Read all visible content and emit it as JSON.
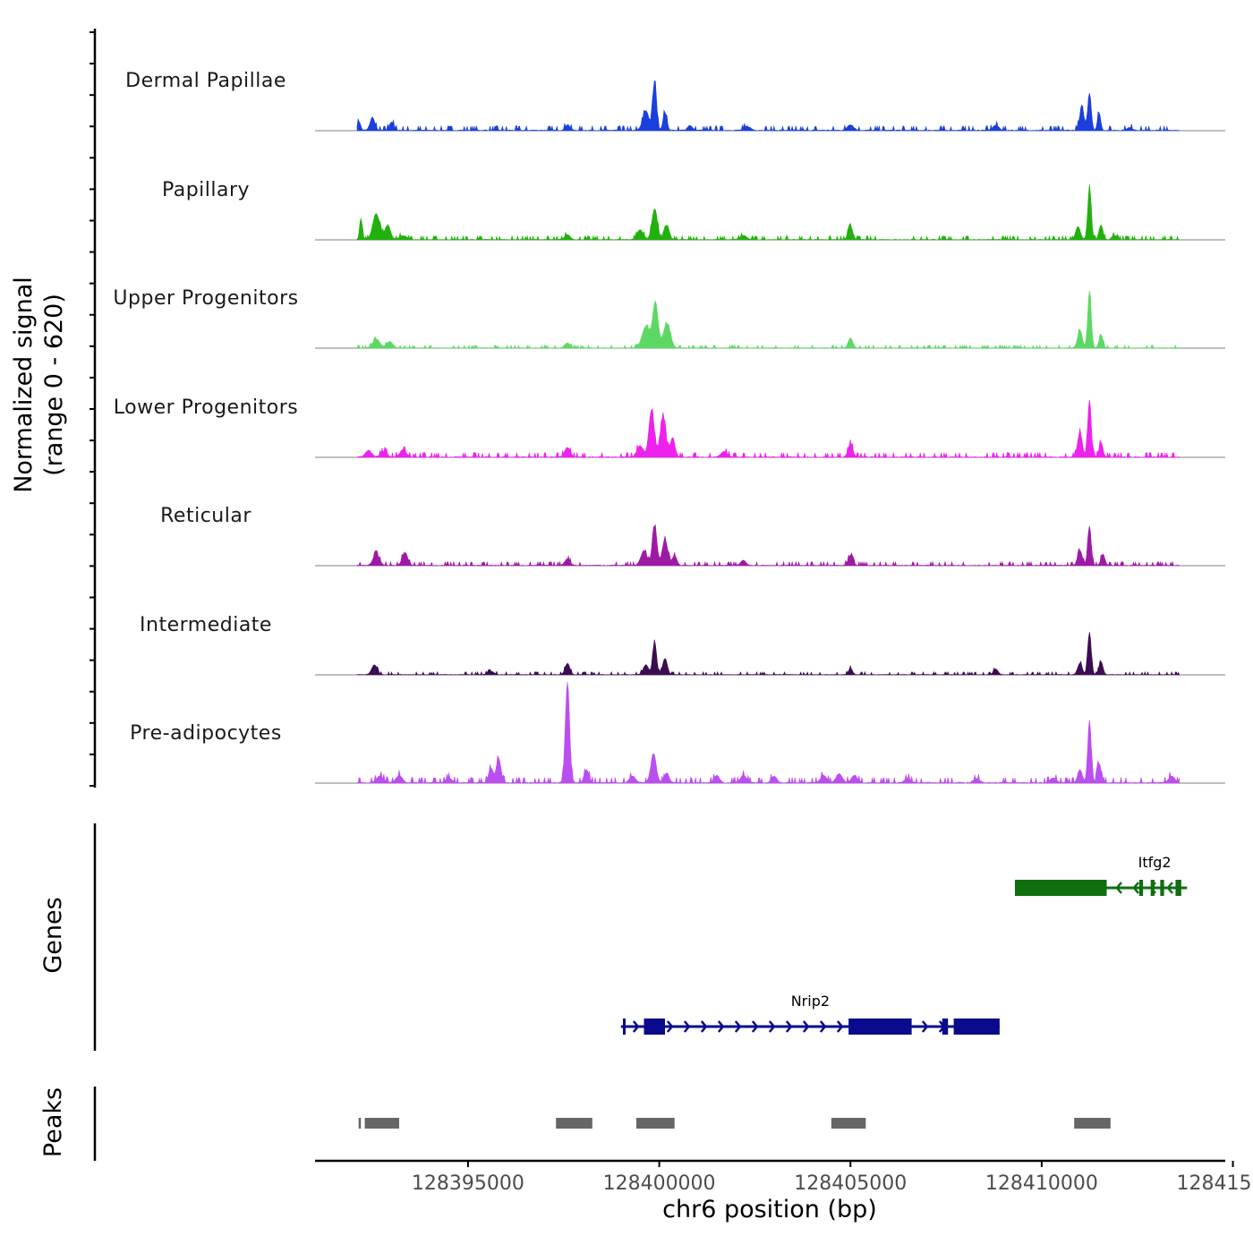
{
  "chart_data": {
    "type": "area",
    "chromosome": "chr6",
    "xlabel": "chr6 position (bp)",
    "ylabel_line1": "Normalized signal",
    "ylabel_line2": "(range 0 - 620)",
    "xlim": [
      128391000,
      128414800
    ],
    "ylim": [
      0,
      620
    ],
    "x_ticks": [
      128395000,
      128400000,
      128405000,
      128410000,
      128415000
    ],
    "x_tick_labels": [
      "128395000",
      "128400000",
      "128405000",
      "128410000",
      "128415000"
    ],
    "series": [
      {
        "name": "Dermal Papillae",
        "color": "#1a3fdc",
        "peaks": [
          [
            128392150,
            55,
            40
          ],
          [
            128392500,
            80,
            60
          ],
          [
            128393000,
            50,
            60
          ],
          [
            128397600,
            35,
            60
          ],
          [
            128399650,
            120,
            80
          ],
          [
            128399880,
            300,
            50
          ],
          [
            128400150,
            110,
            50
          ],
          [
            128400800,
            30,
            60
          ],
          [
            128402300,
            25,
            80
          ],
          [
            128405000,
            35,
            80
          ],
          [
            128408800,
            30,
            80
          ],
          [
            128411050,
            130,
            60
          ],
          [
            128411250,
            230,
            45
          ],
          [
            128411500,
            110,
            40
          ],
          [
            128412300,
            15,
            80
          ]
        ],
        "noise": 0.05
      },
      {
        "name": "Papillary",
        "color": "#22b00e",
        "peaks": [
          [
            128392200,
            130,
            35
          ],
          [
            128392600,
            160,
            90
          ],
          [
            128392900,
            90,
            70
          ],
          [
            128393300,
            25,
            90
          ],
          [
            128397600,
            30,
            70
          ],
          [
            128399500,
            60,
            80
          ],
          [
            128399880,
            190,
            70
          ],
          [
            128400200,
            90,
            60
          ],
          [
            128402200,
            25,
            80
          ],
          [
            128405000,
            80,
            60
          ],
          [
            128410950,
            80,
            60
          ],
          [
            128411250,
            320,
            45
          ],
          [
            128411550,
            90,
            50
          ],
          [
            128411900,
            25,
            60
          ]
        ],
        "noise": 0.04
      },
      {
        "name": "Upper Progenitors",
        "color": "#5ed865",
        "peaks": [
          [
            128392600,
            55,
            90
          ],
          [
            128392950,
            40,
            80
          ],
          [
            128397600,
            30,
            70
          ],
          [
            128399650,
            130,
            100
          ],
          [
            128399900,
            280,
            70
          ],
          [
            128400200,
            150,
            90
          ],
          [
            128405000,
            60,
            60
          ],
          [
            128411000,
            110,
            60
          ],
          [
            128411250,
            350,
            45
          ],
          [
            128411550,
            80,
            50
          ]
        ],
        "noise": 0.03
      },
      {
        "name": "Lower Progenitors",
        "color": "#ee22ee",
        "peaks": [
          [
            128392400,
            40,
            80
          ],
          [
            128392800,
            35,
            80
          ],
          [
            128393300,
            45,
            80
          ],
          [
            128397600,
            60,
            70
          ],
          [
            128399500,
            70,
            80
          ],
          [
            128399800,
            290,
            70
          ],
          [
            128400100,
            250,
            70
          ],
          [
            128400350,
            120,
            60
          ],
          [
            128401700,
            35,
            80
          ],
          [
            128405000,
            80,
            60
          ],
          [
            128411000,
            150,
            60
          ],
          [
            128411250,
            350,
            45
          ],
          [
            128411550,
            90,
            50
          ]
        ],
        "noise": 0.05
      },
      {
        "name": "Reticular",
        "color": "#9e1aa6",
        "peaks": [
          [
            128392600,
            70,
            80
          ],
          [
            128393350,
            80,
            70
          ],
          [
            128397600,
            40,
            70
          ],
          [
            128399600,
            90,
            80
          ],
          [
            128399880,
            240,
            60
          ],
          [
            128400150,
            160,
            70
          ],
          [
            128400400,
            60,
            60
          ],
          [
            128402200,
            30,
            70
          ],
          [
            128405000,
            60,
            60
          ],
          [
            128411000,
            90,
            60
          ],
          [
            128411250,
            240,
            45
          ],
          [
            128411600,
            70,
            50
          ]
        ],
        "noise": 0.04
      },
      {
        "name": "Intermediate",
        "color": "#3c0c52",
        "peaks": [
          [
            128392550,
            60,
            70
          ],
          [
            128395600,
            20,
            80
          ],
          [
            128397600,
            70,
            60
          ],
          [
            128399650,
            60,
            70
          ],
          [
            128399880,
            200,
            50
          ],
          [
            128400150,
            100,
            60
          ],
          [
            128405000,
            40,
            50
          ],
          [
            128408800,
            35,
            60
          ],
          [
            128411000,
            70,
            60
          ],
          [
            128411250,
            260,
            45
          ],
          [
            128411550,
            80,
            50
          ]
        ],
        "noise": 0.03
      },
      {
        "name": "Pre-adipocytes",
        "color": "#bb4ef0",
        "peaks": [
          [
            128392700,
            40,
            90
          ],
          [
            128393200,
            45,
            80
          ],
          [
            128394500,
            30,
            80
          ],
          [
            128395600,
            90,
            60
          ],
          [
            128395800,
            150,
            60
          ],
          [
            128397600,
            620,
            55
          ],
          [
            128398100,
            80,
            60
          ],
          [
            128399300,
            40,
            80
          ],
          [
            128399850,
            180,
            70
          ],
          [
            128400200,
            60,
            60
          ],
          [
            128401500,
            45,
            70
          ],
          [
            128402200,
            45,
            80
          ],
          [
            128403000,
            40,
            70
          ],
          [
            128404300,
            45,
            80
          ],
          [
            128404700,
            55,
            80
          ],
          [
            128405100,
            45,
            80
          ],
          [
            128406500,
            25,
            80
          ],
          [
            128408300,
            25,
            80
          ],
          [
            128410300,
            30,
            80
          ],
          [
            128411000,
            80,
            60
          ],
          [
            128411250,
            380,
            45
          ],
          [
            128411500,
            120,
            50
          ],
          [
            128413400,
            40,
            80
          ]
        ],
        "noise": 0.06
      }
    ],
    "track_range": [
      128392100,
      128413600
    ],
    "genes_track": {
      "label": "Genes",
      "genes": [
        {
          "name": "Itfg2",
          "strand": "-",
          "color": "#0f6e0f",
          "start": 128409300,
          "end": 128413800,
          "exons": [
            [
              128409300,
              128411700
            ],
            [
              128412550,
              128412650
            ],
            [
              128412850,
              128412950
            ],
            [
              128413100,
              128413200
            ],
            [
              128413500,
              128413650
            ]
          ]
        },
        {
          "name": "Nrip2",
          "strand": "+",
          "color": "#0a0a8c",
          "start": 128399000,
          "end": 128408900,
          "exons": [
            [
              128399050,
              128399100
            ],
            [
              128399600,
              128400150
            ],
            [
              128404950,
              128406600
            ],
            [
              128407400,
              128407550
            ],
            [
              128407700,
              128408900
            ]
          ]
        }
      ]
    },
    "peaks_track": {
      "label": "Peaks",
      "color": "#666666",
      "regions": [
        [
          128392140,
          128392200
        ],
        [
          128392300,
          128393200
        ],
        [
          128397300,
          128398250
        ],
        [
          128399400,
          128400400
        ],
        [
          128404500,
          128405400
        ],
        [
          128410850,
          128411800
        ]
      ]
    }
  }
}
